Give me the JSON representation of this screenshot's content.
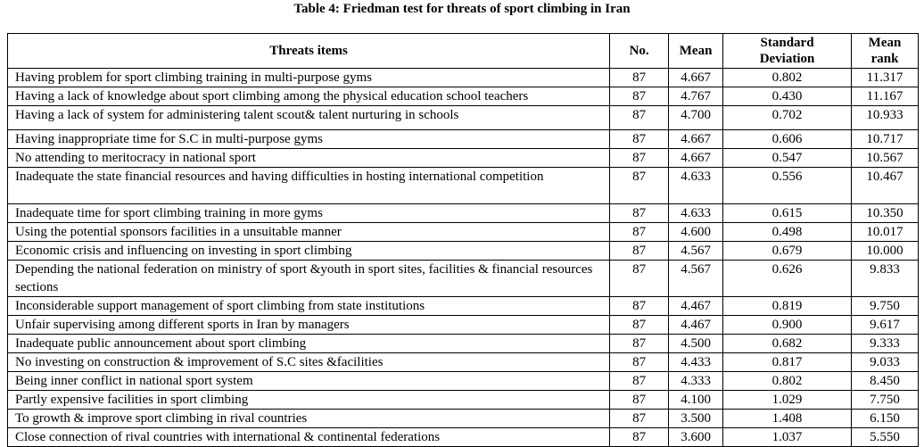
{
  "title": "Table 4: Friedman test for threats of sport climbing in Iran",
  "table": {
    "headers": [
      "Threats items",
      "No.",
      "Mean",
      "Standard Deviation",
      "Mean rank"
    ],
    "rows": [
      [
        "Having problem for sport climbing training in multi-purpose gyms",
        "87",
        "4.667",
        "0.802",
        "11.317"
      ],
      [
        "Having a lack of knowledge about sport climbing among the physical education school teachers",
        "87",
        "4.767",
        "0.430",
        "11.167"
      ],
      [
        "Having a lack of system for administering talent scout& talent nurturing in schools",
        "87",
        "4.700",
        "0.702",
        "10.933"
      ],
      [
        "Having inappropriate time for S.C in multi-purpose gyms",
        "87",
        "4.667",
        "0.606",
        "10.717"
      ],
      [
        "No attending to meritocracy in national sport",
        "87",
        "4.667",
        "0.547",
        "10.567"
      ],
      [
        "Inadequate the state financial resources and having difficulties in hosting international competition",
        "87",
        "4.633",
        "0.556",
        "10.467"
      ],
      [
        "Inadequate time for sport climbing training in more gyms",
        "87",
        "4.633",
        "0.615",
        "10.350"
      ],
      [
        "Using the potential sponsors facilities in a unsuitable manner",
        "87",
        "4.600",
        "0.498",
        "10.017"
      ],
      [
        "Economic crisis and influencing on investing in sport climbing",
        "87",
        "4.567",
        "0.679",
        "10.000"
      ],
      [
        "Depending the national federation on ministry of sport &youth in sport sites, facilities & financial resources sections",
        "87",
        "4.567",
        "0.626",
        "9.833"
      ],
      [
        "Inconsiderable support management of sport climbing from state institutions",
        "87",
        "4.467",
        "0.819",
        "9.750"
      ],
      [
        "Unfair supervising among different sports in Iran by managers",
        "87",
        "4.467",
        "0.900",
        "9.617"
      ],
      [
        "Inadequate public announcement about sport climbing",
        "87",
        "4.500",
        "0.682",
        "9.333"
      ],
      [
        "No investing on construction & improvement of S.C sites &facilities",
        "87",
        "4.433",
        "0.817",
        "9.033"
      ],
      [
        "Being inner conflict in national sport system",
        "87",
        "4.333",
        "0.802",
        "8.450"
      ],
      [
        "Partly expensive facilities in sport climbing",
        "87",
        "4.100",
        "1.029",
        "7.750"
      ],
      [
        "To growth & improve sport climbing in rival countries",
        "87",
        "3.500",
        "1.408",
        "6.150"
      ],
      [
        "Close connection of rival countries with international & continental federations",
        "87",
        "3.600",
        "1.037",
        "5.550"
      ]
    ]
  }
}
